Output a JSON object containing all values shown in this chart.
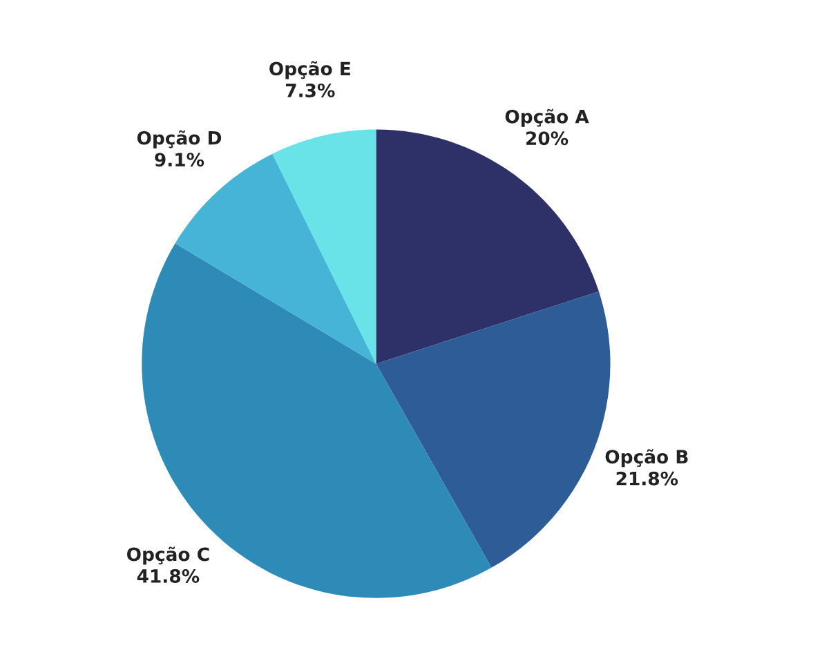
{
  "chart_data": {
    "type": "pie",
    "categories": [
      "Opção A",
      "Opção B",
      "Opção C",
      "Opção D",
      "Opção E"
    ],
    "values": [
      20,
      21.8,
      41.8,
      9.1,
      7.3
    ],
    "value_labels": [
      "20%",
      "21.8%",
      "41.8%",
      "9.1%",
      "7.3%"
    ],
    "colors": [
      "#2e3168",
      "#2e5c96",
      "#2e8bb8",
      "#45b4d6",
      "#6ae3e8"
    ],
    "legend": false
  }
}
